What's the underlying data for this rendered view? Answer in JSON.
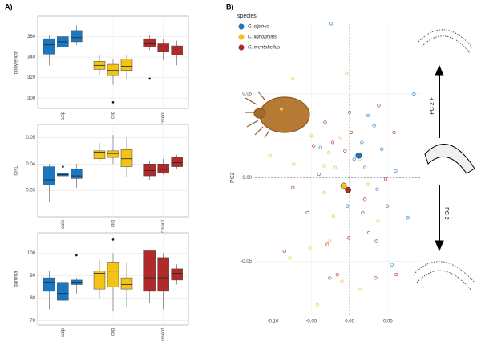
{
  "panels": [
    "A)",
    "B)"
  ],
  "chart_data": [
    {
      "type": "box",
      "ylabel": "bodylength",
      "categories": [
        "calp",
        "clig",
        "cment"
      ],
      "colors": [
        "#1a78c2",
        "#f3c316",
        "#b12a2a"
      ],
      "ylim": [
        290,
        380
      ],
      "yticks": [
        300,
        320,
        340,
        360
      ],
      "grid": true,
      "boxes": [
        [
          {
            "min": 332,
            "q1": 343,
            "median": 352,
            "q3": 358,
            "max": 362
          },
          {
            "min": 348,
            "q1": 350,
            "median": 355,
            "q3": 360,
            "max": 364
          },
          {
            "min": 352,
            "q1": 355,
            "median": 359,
            "q3": 366,
            "max": 371
          }
        ],
        [
          {
            "min": 323,
            "q1": 328,
            "median": 332,
            "q3": 336,
            "max": 342
          },
          {
            "min": 313,
            "q1": 322,
            "median": 327,
            "q3": 333,
            "max": 338,
            "outliers": [
              296
            ]
          },
          {
            "min": 318,
            "q1": 327,
            "median": 331,
            "q3": 338,
            "max": 342
          }
        ],
        [
          {
            "min": 347,
            "q1": 350,
            "median": 353,
            "q3": 358,
            "max": 362,
            "outliers": [
              319
            ]
          },
          {
            "min": 337,
            "q1": 345,
            "median": 350,
            "q3": 353,
            "max": 358
          },
          {
            "min": 332,
            "q1": 342,
            "median": 346,
            "q3": 351,
            "max": 356
          }
        ]
      ]
    },
    {
      "type": "box",
      "ylabel": "cl/sL",
      "categories": [
        "calp",
        "clig",
        "cment"
      ],
      "colors": [
        "#1a78c2",
        "#f3c316",
        "#b12a2a"
      ],
      "ylim": [
        0.02,
        0.055
      ],
      "yticks": [
        0.03,
        0.04,
        0.05
      ],
      "grid": true,
      "boxes": [
        [
          {
            "min": 0.0255,
            "q1": 0.032,
            "median": 0.034,
            "q3": 0.039,
            "max": 0.04
          },
          {
            "min": 0.033,
            "q1": 0.0355,
            "median": 0.036,
            "q3": 0.0365,
            "max": 0.038,
            "outliers": [
              0.039
            ]
          },
          {
            "min": 0.031,
            "q1": 0.0345,
            "median": 0.0355,
            "q3": 0.038,
            "max": 0.04
          }
        ],
        [
          {
            "min": 0.041,
            "q1": 0.042,
            "median": 0.0445,
            "q3": 0.045,
            "max": 0.048
          },
          {
            "min": 0.04,
            "q1": 0.0425,
            "median": 0.044,
            "q3": 0.045,
            "max": 0.051
          },
          {
            "min": 0.035,
            "q1": 0.039,
            "median": 0.042,
            "q3": 0.0455,
            "max": 0.05
          }
        ],
        [
          {
            "min": 0.034,
            "q1": 0.0355,
            "median": 0.0375,
            "q3": 0.04,
            "max": 0.041
          },
          {
            "min": 0.036,
            "q1": 0.0365,
            "median": 0.038,
            "q3": 0.04,
            "max": 0.042
          },
          {
            "min": 0.038,
            "q1": 0.039,
            "median": 0.0405,
            "q3": 0.0425,
            "max": 0.0435
          }
        ]
      ]
    },
    {
      "type": "box",
      "ylabel": "gamma",
      "categories": [
        "calp",
        "clig",
        "cment"
      ],
      "colors": [
        "#1a78c2",
        "#f3c316",
        "#b12a2a"
      ],
      "ylim": [
        68,
        109
      ],
      "yticks": [
        70,
        80,
        90,
        100
      ],
      "grid": true,
      "boxes": [
        [
          {
            "min": 75,
            "q1": 83,
            "median": 87,
            "q3": 89,
            "max": 92
          },
          {
            "min": 72,
            "q1": 79,
            "median": 82,
            "q3": 87,
            "max": 90
          },
          {
            "min": 82,
            "q1": 86,
            "median": 87,
            "q3": 88,
            "max": 89,
            "outliers": [
              99
            ]
          }
        ],
        [
          {
            "min": 80,
            "q1": 84,
            "median": 91,
            "q3": 92,
            "max": 97
          },
          {
            "min": 74,
            "q1": 85,
            "median": 92,
            "q3": 96,
            "max": 100,
            "outliers": [
              106
            ]
          },
          {
            "min": 76,
            "q1": 84,
            "median": 86,
            "q3": 89,
            "max": 96
          }
        ],
        [
          {
            "min": 78,
            "q1": 83,
            "median": 89,
            "q3": 101,
            "max": 101
          },
          {
            "min": 75,
            "q1": 83,
            "median": 89,
            "q3": 98,
            "max": 100
          },
          {
            "min": 86,
            "q1": 88,
            "median": 91,
            "q3": 93,
            "max": 95
          }
        ]
      ]
    },
    {
      "type": "scatter",
      "ylabel": "PC2",
      "legend_title": "species",
      "legend": "top-left",
      "grid": true,
      "xlim": [
        -0.1235,
        0.093
      ],
      "ylim": [
        -0.0819,
        0.0917
      ],
      "xticks": [
        {
          "value": -0.1,
          "label": "-0.10"
        },
        -0.05,
        {
          "value": 0,
          "label": "0.00"
        },
        0.05
      ],
      "yticks": [
        -0.05,
        {
          "value": 0,
          "label": "0.00"
        },
        0.05
      ],
      "reference_lines": {
        "x": 0,
        "y": 0
      },
      "annotations": [
        "PC 2 +",
        "PC 2 -"
      ],
      "series": [
        {
          "name": "C. alpinus",
          "color": "#1a78c2",
          "centroid": [
            0.0118,
            0.0132
          ],
          "x": [
            -0.024,
            0.084,
            0,
            0.024,
            0.032,
            0.016,
            0.006,
            0.02,
            0.06,
            0.036,
            0.049,
            0.017,
            0.076,
            -0.026,
            0.055,
            0.025,
            -0.04,
            -0.038,
            -0.003,
            0.042
          ],
          "y": [
            0.092,
            0.05,
            0.039,
            0.037,
            0.031,
            0.021,
            0.011,
            0.006,
            0.004,
            -0.007,
            -0.017,
            -0.021,
            -0.024,
            -0.06,
            -0.052,
            -0.033,
            0.002,
            0.018,
            -0.017,
            0.017
          ]
        },
        {
          "name": "C. lignophilus",
          "color": "#f3c316",
          "centroid": [
            -0.0078,
            -0.0049
          ],
          "x": [
            -0.074,
            -0.004,
            -0.104,
            -0.073,
            -0.05,
            -0.033,
            -0.027,
            -0.019,
            -0.012,
            0.013,
            -0.033,
            -0.021,
            -0.026,
            -0.052,
            -0.078,
            -0.042,
            -0.01,
            0.014,
            0.037,
            0.024,
            -0.089
          ],
          "y": [
            0.059,
            0.062,
            0.013,
            0.008,
            0.025,
            0.007,
            0.015,
            0.006,
            0.024,
            0.011,
            -0.009,
            -0.023,
            -0.038,
            -0.042,
            -0.048,
            -0.076,
            -0.062,
            -0.067,
            -0.026,
            -0.004,
            0.041
          ]
        },
        {
          "name": "C. mentobellus",
          "color": "#b12a2a",
          "centroid": [
            -0.002,
            -0.0074
          ],
          "x": [
            -0.074,
            -0.085,
            -0.055,
            -0.047,
            -0.022,
            -0.006,
            0.002,
            0.038,
            0.058,
            0.047,
            0.02,
            -0.001,
            0.035,
            0.061,
            0.034,
            -0.016,
            -0.032,
            -0.029
          ],
          "y": [
            -0.006,
            -0.044,
            -0.021,
            0.019,
            0.021,
            0.016,
            0.027,
            0.043,
            0.027,
            -0.001,
            -0.013,
            -0.036,
            -0.038,
            -0.058,
            -0.06,
            -0.058,
            0.033,
            -0.04
          ]
        }
      ]
    }
  ]
}
